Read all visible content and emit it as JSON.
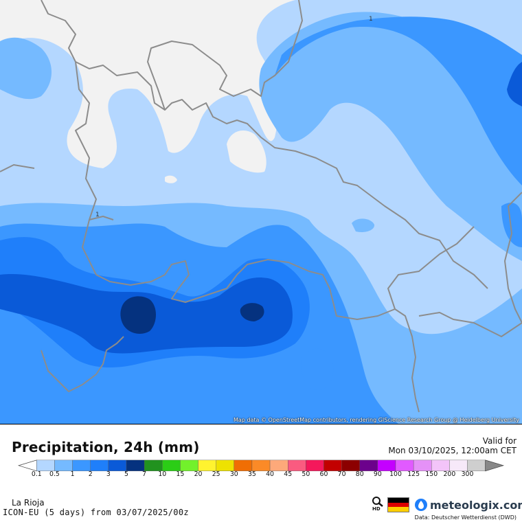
{
  "map": {
    "attribution": "Map data © OpenStreetMap contributors, rendering GIScience Research Group @ Heidelberg University",
    "contour_labels": [
      "1",
      "1"
    ]
  },
  "footer": {
    "title": "Precipitation, 24h (mm)",
    "valid_label": "Valid for",
    "valid_date": "Mon 03/10/2025, 12:00am CET",
    "region": "La Rioja",
    "model_run": "ICON-EU (5 days) from 03/07/2025/00z",
    "hd_label": "HD",
    "brand": "meteologix.com",
    "data_source": "Data: Deutscher Wetterdienst (DWD)",
    "flag_colors": [
      "#000000",
      "#dd0000",
      "#ffce00"
    ]
  },
  "legend": {
    "under_color": "#ffffff",
    "over_color": "#888888",
    "colors": [
      "#b4d7ff",
      "#75baff",
      "#3b97ff",
      "#1f7ffa",
      "#0a5ad8",
      "#05327f",
      "#21921f",
      "#2bcd16",
      "#72f12b",
      "#fff32f",
      "#eee201",
      "#f06e04",
      "#fb8a27",
      "#fda97a",
      "#fa5b80",
      "#f4185b",
      "#c20000",
      "#8c0000",
      "#6c018c",
      "#c400ff",
      "#e15aff",
      "#e591f7",
      "#f3c4f9",
      "#f7e9f9",
      "#cfcfcf"
    ],
    "labels": [
      "0.1",
      "0.5",
      "1",
      "2",
      "3",
      "5",
      "7",
      "10",
      "15",
      "20",
      "25",
      "30",
      "35",
      "40",
      "45",
      "50",
      "60",
      "70",
      "80",
      "90",
      "100",
      "125",
      "150",
      "200",
      "300"
    ]
  }
}
